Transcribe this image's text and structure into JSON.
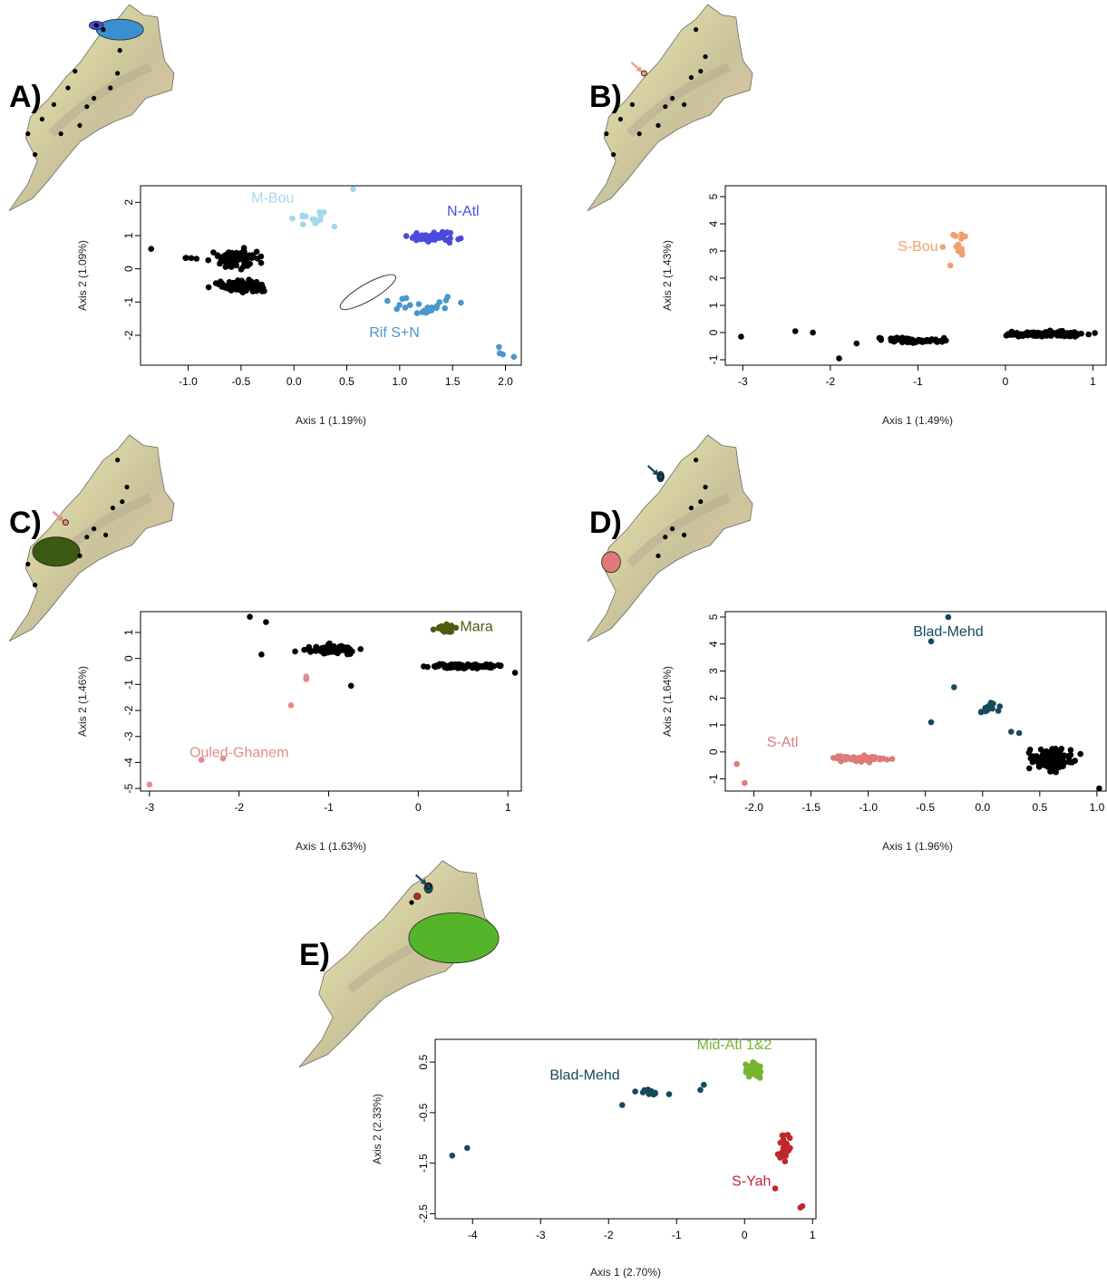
{
  "figure": {
    "panels": [
      {
        "letter": "A)",
        "xlabel": "Axis 1 (1.19%)",
        "ylabel": "Axis 2 (1.09%)",
        "xlim": [
          -1.45,
          2.15
        ],
        "ylim": [
          -2.9,
          2.5
        ],
        "xticks": [
          -1.0,
          -0.5,
          0.0,
          0.5,
          1.0,
          1.5,
          2.0
        ],
        "xtick_labels": [
          "-1.0",
          "-0.5",
          "0.0",
          "0.5",
          "1.0",
          "1.5",
          "2.0"
        ],
        "yticks": [
          -2,
          -1,
          0,
          1,
          2
        ],
        "ytick_labels": [
          "-2",
          "-1",
          "0",
          "1",
          "2"
        ],
        "groups": [
          {
            "name": "",
            "color": "#000000",
            "clusters": [
              [
                -0.55,
                0.3,
                0.26,
                0.32,
                95
              ],
              [
                -0.5,
                -0.5,
                0.28,
                0.22,
                110
              ],
              [
                -1.05,
                0.35,
                0.2,
                0.15,
                4
              ]
            ]
          },
          {
            "name": "M-Bou",
            "color": "#a6d7ec",
            "label_at": [
              -0.2,
              2.0
            ],
            "clusters": [
              [
                0.22,
                1.5,
                0.25,
                0.45,
                16
              ]
            ]
          },
          {
            "name": "N-Atl",
            "color": "#4b4adf",
            "label_at": [
              1.6,
              1.6
            ],
            "clusters": [
              [
                1.35,
                0.95,
                0.3,
                0.18,
                45
              ]
            ]
          },
          {
            "name": "Rif S+N",
            "color": "#4a97cb",
            "label_at": [
              0.95,
              -2.05
            ],
            "clusters": [
              [
                1.2,
                -1.1,
                0.42,
                0.45,
                24
              ],
              [
                1.95,
                -2.45,
                0.12,
                0.18,
                3
              ]
            ]
          }
        ],
        "points": [
          {
            "x": -1.35,
            "y": 0.6,
            "group": 0
          },
          {
            "x": 2.08,
            "y": -2.65,
            "group": 3
          },
          {
            "x": 0.56,
            "y": 2.4,
            "group": 1
          }
        ],
        "ellipse": {
          "x": 0.7,
          "y": -0.7,
          "rx": 0.3,
          "ry": 0.25,
          "angle": -30
        },
        "map": {
          "markers": [
            [
              0.37,
              0.1
            ],
            [
              0.4,
              0.12
            ],
            [
              0.28,
              0.32
            ],
            [
              0.25,
              0.4
            ],
            [
              0.19,
              0.48
            ],
            [
              0.14,
              0.55
            ],
            [
              0.08,
              0.62
            ],
            [
              0.11,
              0.72
            ],
            [
              0.22,
              0.62
            ],
            [
              0.3,
              0.58
            ],
            [
              0.33,
              0.49
            ],
            [
              0.36,
              0.45
            ],
            [
              0.46,
              0.33
            ],
            [
              0.47,
              0.22
            ],
            [
              0.43,
              0.4
            ]
          ],
          "hulls": [
            {
              "color": "#3a8fd0",
              "cx": 0.47,
              "cy": 0.12,
              "rx": 0.1,
              "ry": 0.05
            },
            {
              "color": "#4b4adf",
              "cx": 0.37,
              "cy": 0.1,
              "rx": 0.03,
              "ry": 0.02
            }
          ],
          "arrow": null
        }
      },
      {
        "letter": "B)",
        "xlabel": "Axis 1 (1.49%)",
        "ylabel": "Axis 2 (1.43%)",
        "xlim": [
          -3.2,
          1.15
        ],
        "ylim": [
          -1.2,
          5.4
        ],
        "xticks": [
          -3,
          -2,
          -1,
          0,
          1
        ],
        "xtick_labels": [
          "-3",
          "-2",
          "-1",
          "0",
          "1"
        ],
        "yticks": [
          -1,
          0,
          1,
          2,
          3,
          4,
          5
        ],
        "ytick_labels": [
          "-1",
          "0",
          "1",
          "2",
          "3",
          "4",
          "5"
        ],
        "groups": [
          {
            "name": "",
            "color": "#000000",
            "clusters": [
              [
                -1.05,
                -0.3,
                0.45,
                0.12,
                70
              ],
              [
                0.45,
                -0.05,
                0.5,
                0.12,
                110
              ]
            ]
          },
          {
            "name": "S-Bou",
            "color": "#f0a06d",
            "label_at": [
              -1.0,
              3.0
            ],
            "clusters": [
              [
                -0.55,
                3.3,
                0.25,
                1.1,
                14
              ]
            ]
          }
        ],
        "points": [
          {
            "x": -3.02,
            "y": -0.15,
            "group": 0
          },
          {
            "x": -2.4,
            "y": 0.05,
            "group": 0
          },
          {
            "x": -2.2,
            "y": 0.0,
            "group": 0
          },
          {
            "x": -1.9,
            "y": -0.95,
            "group": 0
          },
          {
            "x": -1.7,
            "y": -0.4,
            "group": 0
          }
        ],
        "ellipse": null,
        "map": {
          "markers": [
            [
              0.46,
              0.12
            ],
            [
              0.5,
              0.25
            ],
            [
              0.44,
              0.35
            ],
            [
              0.41,
              0.48
            ],
            [
              0.19,
              0.48
            ],
            [
              0.14,
              0.55
            ],
            [
              0.08,
              0.62
            ],
            [
              0.11,
              0.72
            ],
            [
              0.22,
              0.62
            ],
            [
              0.3,
              0.58
            ],
            [
              0.33,
              0.49
            ],
            [
              0.36,
              0.45
            ],
            [
              0.48,
              0.32
            ]
          ],
          "hulls": [],
          "arrow": {
            "x": 0.24,
            "y": 0.33,
            "color": "#f0a06d"
          }
        }
      },
      {
        "letter": "C)",
        "xlabel": "Axis 1 (1.63%)",
        "ylabel": "Axis 2 (1.46%)",
        "xlim": [
          -3.1,
          1.15
        ],
        "ylim": [
          -5.1,
          1.8
        ],
        "xticks": [
          -3,
          -2,
          -1,
          0,
          1
        ],
        "xtick_labels": [
          "-3",
          "-2",
          "-1",
          "0",
          "1"
        ],
        "yticks": [
          -5,
          -4,
          -3,
          -2,
          -1,
          0,
          1
        ],
        "ytick_labels": [
          "-5",
          "-4",
          "-3",
          "-2",
          "-1",
          "0",
          "1"
        ],
        "groups": [
          {
            "name": "",
            "color": "#000000",
            "clusters": [
              [
                -1.0,
                0.35,
                0.38,
                0.22,
                65
              ],
              [
                0.5,
                -0.3,
                0.48,
                0.12,
                100
              ]
            ]
          },
          {
            "name": "Mara",
            "color": "#4f5a10",
            "label_at": [
              0.65,
              1.05
            ],
            "clusters": [
              [
                0.3,
                1.15,
                0.15,
                0.22,
                25
              ]
            ]
          },
          {
            "name": "Ouled-Ghanem",
            "color": "#e58a8a",
            "label_at": [
              -2.0,
              -3.8
            ],
            "clusters": []
          }
        ],
        "points": [
          {
            "x": -1.88,
            "y": 1.6,
            "group": 0
          },
          {
            "x": -1.7,
            "y": 1.4,
            "group": 0
          },
          {
            "x": -1.75,
            "y": 0.15,
            "group": 0
          },
          {
            "x": -0.75,
            "y": -1.05,
            "group": 0
          },
          {
            "x": 1.08,
            "y": -0.55,
            "group": 0
          },
          {
            "x": -3.0,
            "y": -4.85,
            "group": 2
          },
          {
            "x": -2.42,
            "y": -3.9,
            "group": 2
          },
          {
            "x": -2.18,
            "y": -3.85,
            "group": 2
          },
          {
            "x": -1.42,
            "y": -1.8,
            "group": 2
          },
          {
            "x": -1.25,
            "y": -0.7,
            "group": 2
          },
          {
            "x": -1.25,
            "y": -0.8,
            "group": 2
          }
        ],
        "ellipse": null,
        "map": {
          "markers": [
            [
              0.46,
              0.12
            ],
            [
              0.5,
              0.25
            ],
            [
              0.44,
              0.35
            ],
            [
              0.41,
              0.48
            ],
            [
              0.3,
              0.58
            ],
            [
              0.33,
              0.49
            ],
            [
              0.36,
              0.45
            ],
            [
              0.48,
              0.32
            ],
            [
              0.11,
              0.72
            ],
            [
              0.08,
              0.62
            ]
          ],
          "hulls": [
            {
              "color": "#3d5a12",
              "cx": 0.2,
              "cy": 0.56,
              "rx": 0.1,
              "ry": 0.07
            }
          ],
          "arrow": {
            "x": 0.24,
            "y": 0.42,
            "color": "#e58a8a"
          }
        }
      },
      {
        "letter": "D)",
        "xlabel": "Axis 1 (1.96%)",
        "ylabel": "Axis 2 (1.64%)",
        "xlim": [
          -2.25,
          1.08
        ],
        "ylim": [
          -1.45,
          5.2
        ],
        "xticks": [
          -2.0,
          -1.5,
          -1.0,
          -0.5,
          0.0,
          0.5,
          1.0
        ],
        "xtick_labels": [
          "-2.0",
          "-1.5",
          "-1.0",
          "-0.5",
          "0.0",
          "0.5",
          "1.0"
        ],
        "yticks": [
          -1,
          0,
          1,
          2,
          3,
          4,
          5
        ],
        "ytick_labels": [
          "-1",
          "0",
          "1",
          "2",
          "3",
          "4",
          "5"
        ],
        "groups": [
          {
            "name": "",
            "color": "#000000",
            "clusters": [
              [
                0.6,
                -0.3,
                0.22,
                0.5,
                110
              ]
            ]
          },
          {
            "name": "Blad-Mehd",
            "color": "#154a5b",
            "label_at": [
              -0.3,
              4.3
            ],
            "clusters": [
              [
                0.05,
                1.55,
                0.12,
                0.35,
                12
              ]
            ]
          },
          {
            "name": "S-Atl",
            "color": "#e07a7a",
            "label_at": [
              -1.75,
              0.2
            ],
            "clusters": [
              [
                -1.05,
                -0.25,
                0.38,
                0.12,
                50
              ]
            ]
          }
        ],
        "points": [
          {
            "x": -0.3,
            "y": 5.0,
            "group": 1
          },
          {
            "x": -0.45,
            "y": 4.1,
            "group": 1
          },
          {
            "x": -0.25,
            "y": 2.4,
            "group": 1
          },
          {
            "x": -0.45,
            "y": 1.1,
            "group": 1
          },
          {
            "x": 0.25,
            "y": 0.75,
            "group": 1
          },
          {
            "x": 0.32,
            "y": 0.7,
            "group": 1
          },
          {
            "x": -2.15,
            "y": -0.45,
            "group": 2
          },
          {
            "x": -2.08,
            "y": -1.15,
            "group": 2
          },
          {
            "x": 1.02,
            "y": -1.35,
            "group": 0
          }
        ],
        "ellipse": null,
        "map": {
          "markers": [
            [
              0.46,
              0.12
            ],
            [
              0.5,
              0.25
            ],
            [
              0.44,
              0.35
            ],
            [
              0.41,
              0.48
            ],
            [
              0.3,
              0.58
            ],
            [
              0.33,
              0.49
            ],
            [
              0.36,
              0.45
            ],
            [
              0.48,
              0.32
            ]
          ],
          "hulls": [
            {
              "color": "#e07a7a",
              "cx": 0.1,
              "cy": 0.61,
              "rx": 0.04,
              "ry": 0.05
            },
            {
              "color": "#154a5b",
              "cx": 0.31,
              "cy": 0.2,
              "rx": 0.015,
              "ry": 0.025
            }
          ],
          "arrow": {
            "x": 0.31,
            "y": 0.2,
            "color": "#154a5b"
          }
        }
      },
      {
        "letter": "E)",
        "xlabel": "Axis 1 (2.70%)",
        "ylabel": "Axis 2 (2.33%)",
        "xlim": [
          -4.55,
          1.05
        ],
        "ylim": [
          -2.6,
          0.95
        ],
        "xticks": [
          -4,
          -3,
          -2,
          -1,
          0,
          1
        ],
        "xtick_labels": [
          "-4",
          "-3",
          "-2",
          "-1",
          "0",
          "1"
        ],
        "yticks": [
          -2.5,
          -1.5,
          -0.5,
          0.5
        ],
        "ytick_labels": [
          "-2.5",
          "-1.5",
          "-0.5",
          "0.5"
        ],
        "groups": [
          {
            "name": "Blad-Mehd",
            "color": "#154a5b",
            "label_at": [
              -2.35,
              0.15
            ],
            "clusters": [
              [
                -1.45,
                -0.1,
                0.3,
                0.1,
                14
              ]
            ]
          },
          {
            "name": "Mid-Atl 1&2",
            "color": "#76b52f",
            "label_at": [
              -0.15,
              0.75
            ],
            "clusters": [
              [
                0.15,
                0.35,
                0.15,
                0.17,
                60
              ]
            ]
          },
          {
            "name": "S-Yah",
            "color": "#c0272d",
            "label_at": [
              0.1,
              -1.95
            ],
            "clusters": [
              [
                0.6,
                -1.2,
                0.12,
                0.35,
                30
              ]
            ]
          }
        ],
        "points": [
          {
            "x": -4.3,
            "y": -1.35,
            "group": 0
          },
          {
            "x": -4.08,
            "y": -1.2,
            "group": 0
          },
          {
            "x": -0.6,
            "y": 0.05,
            "group": 0
          },
          {
            "x": -0.65,
            "y": -0.05,
            "group": 0
          },
          {
            "x": -1.8,
            "y": -0.35,
            "group": 0
          },
          {
            "x": 0.82,
            "y": -2.38,
            "group": 2
          },
          {
            "x": 0.85,
            "y": -2.35,
            "group": 2
          },
          {
            "x": 0.45,
            "y": -2.0,
            "group": 2
          }
        ],
        "ellipse": null,
        "map": {
          "markers": [
            [
              0.4,
              0.2
            ],
            [
              0.46,
              0.12
            ]
          ],
          "hulls": [
            {
              "color": "#55b52a",
              "cx": 0.55,
              "cy": 0.37,
              "rx": 0.16,
              "ry": 0.12
            },
            {
              "color": "#154a5b",
              "cx": 0.46,
              "cy": 0.13,
              "rx": 0.015,
              "ry": 0.025
            },
            {
              "color": "#c0272d",
              "cx": 0.42,
              "cy": 0.17,
              "rx": 0.012,
              "ry": 0.015
            }
          ],
          "arrow": {
            "x": 0.46,
            "y": 0.12,
            "color": "#154a5b"
          }
        }
      }
    ]
  }
}
